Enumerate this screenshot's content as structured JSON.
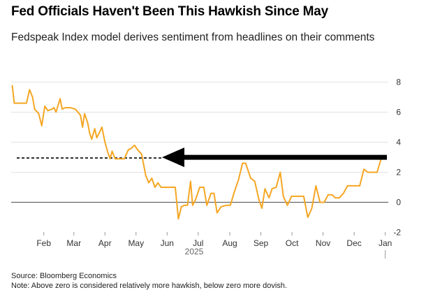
{
  "chart_data": {
    "type": "line",
    "title": "Fed Officials Haven't Been This Hawkish Since May",
    "subtitle": "Fedspeak Index model derives sentiment from headlines on their comments",
    "xlabel": "",
    "ylabel": "",
    "year_label": "2025",
    "x_ticks": [
      "Feb",
      "Mar",
      "Apr",
      "May",
      "Jun",
      "Jul",
      "Aug",
      "Sep",
      "Oct",
      "Nov",
      "Dec",
      "Jan"
    ],
    "y_ticks": [
      8,
      6,
      4,
      2,
      0,
      -2
    ],
    "ylim": [
      -2,
      8
    ],
    "grid": true,
    "reference_level": 2.95,
    "annotation": "arrow pointing left along the current level back to May",
    "series": [
      {
        "color": "#f5a623",
        "x": [
          "2025-01-15",
          "2025-01-17",
          "2025-01-26",
          "2025-01-29",
          "2025-02-01",
          "2025-02-04",
          "2025-02-06",
          "2025-02-10",
          "2025-02-13",
          "2025-02-16",
          "2025-02-19",
          "2025-02-23",
          "2025-02-25",
          "2025-02-27",
          "2025-03-03",
          "2025-03-05",
          "2025-03-08",
          "2025-03-13",
          "2025-03-18",
          "2025-03-23",
          "2025-03-25",
          "2025-03-27",
          "2025-03-30",
          "2025-04-01",
          "2025-04-03",
          "2025-04-06",
          "2025-04-08",
          "2025-04-11",
          "2025-04-13",
          "2025-04-16",
          "2025-04-19",
          "2025-04-21",
          "2025-04-23",
          "2025-04-26",
          "2025-04-29",
          "2025-05-01",
          "2025-05-05",
          "2025-05-09",
          "2025-05-12",
          "2025-05-15",
          "2025-05-18",
          "2025-05-22",
          "2025-05-26",
          "2025-05-29",
          "2025-06-01",
          "2025-06-04",
          "2025-06-07",
          "2025-06-10",
          "2025-06-14",
          "2025-06-19",
          "2025-06-24",
          "2025-06-27",
          "2025-06-30",
          "2025-07-03",
          "2025-07-06",
          "2025-07-09",
          "2025-07-11",
          "2025-07-14",
          "2025-07-18",
          "2025-07-22",
          "2025-07-25",
          "2025-07-29",
          "2025-08-01",
          "2025-08-04",
          "2025-08-08",
          "2025-08-13",
          "2025-08-17",
          "2025-08-21",
          "2025-08-25",
          "2025-08-29",
          "2025-09-01",
          "2025-09-06",
          "2025-09-10",
          "2025-09-14",
          "2025-09-17",
          "2025-09-20",
          "2025-09-24",
          "2025-09-27",
          "2025-10-01",
          "2025-10-05",
          "2025-10-08",
          "2025-10-12",
          "2025-10-16",
          "2025-10-20",
          "2025-10-24",
          "2025-10-28",
          "2025-11-01",
          "2025-11-05",
          "2025-11-09",
          "2025-11-13",
          "2025-11-17",
          "2025-11-21",
          "2025-11-25",
          "2025-11-28",
          "2025-12-02",
          "2025-12-06",
          "2025-12-10",
          "2025-12-14",
          "2025-12-18",
          "2025-12-22",
          "2025-12-26",
          "2025-12-30",
          "2026-01-03",
          "2026-01-06",
          "2026-01-08",
          "2026-01-12",
          "2026-01-14",
          "2026-01-16"
        ],
        "values": [
          7.8,
          6.6,
          6.6,
          6.6,
          7.5,
          7.0,
          6.2,
          5.9,
          5.1,
          6.4,
          6.1,
          6.2,
          6.3,
          6.0,
          6.9,
          6.2,
          6.3,
          6.3,
          6.2,
          5.8,
          5.0,
          5.9,
          5.3,
          4.6,
          4.2,
          4.9,
          4.3,
          4.7,
          5.0,
          4.0,
          3.3,
          2.9,
          3.4,
          2.9,
          2.9,
          2.9,
          2.9,
          3.5,
          3.6,
          3.8,
          3.5,
          3.2,
          1.8,
          1.3,
          1.6,
          1.0,
          1.3,
          1.0,
          1.0,
          1.0,
          1.0,
          -1.1,
          -0.3,
          -0.2,
          -0.2,
          1.4,
          -0.2,
          0.2,
          1.0,
          1.0,
          -0.2,
          0.6,
          0.6,
          -0.7,
          -0.3,
          -0.2,
          -0.2,
          0.7,
          1.5,
          2.6,
          2.6,
          1.6,
          1.4,
          0.2,
          -0.4,
          0.9,
          0.3,
          0.9,
          1.0,
          2.0,
          0.4,
          -0.2,
          0.4,
          0.4,
          0.4,
          0.4,
          -1.0,
          -0.4,
          1.1,
          0.0,
          0.0,
          0.5,
          0.5,
          0.3,
          0.3,
          0.6,
          1.1,
          1.1,
          1.1,
          1.1,
          2.2,
          2.0,
          2.0,
          2.0,
          2.0,
          2.9,
          2.9,
          2.9
        ]
      }
    ]
  },
  "footer": {
    "source": "Source: Bloomberg Economics",
    "note": "Note: Above zero is considered relatively more hawkish, below zero more dovish."
  }
}
